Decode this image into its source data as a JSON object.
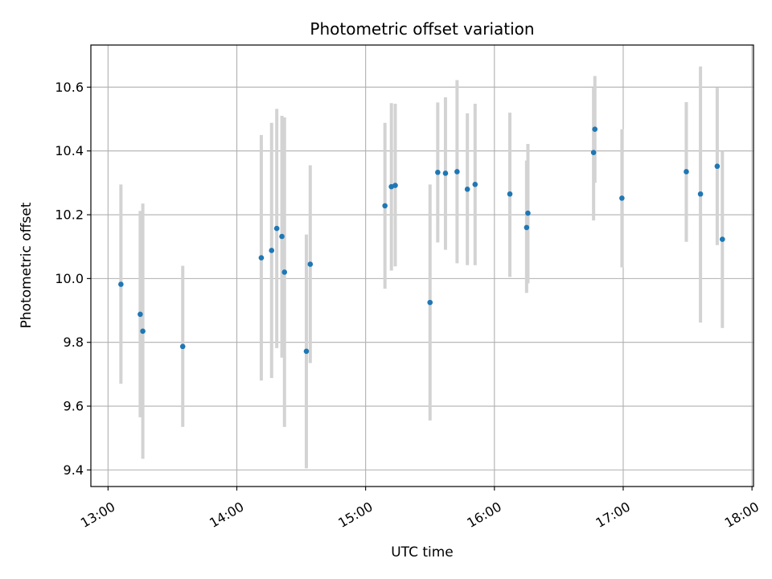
{
  "chart_data": {
    "type": "scatter",
    "title": "Photometric offset variation",
    "xlabel": "UTC time",
    "ylabel": "Photometric offset",
    "x_unit": "hours UTC",
    "xlim": [
      12.8667,
      18.0117
    ],
    "ylim": [
      9.348,
      10.732
    ],
    "x_ticks": [
      {
        "value": 13,
        "label": "13:00"
      },
      {
        "value": 14,
        "label": "14:00"
      },
      {
        "value": 15,
        "label": "15:00"
      },
      {
        "value": 16,
        "label": "16:00"
      },
      {
        "value": 17,
        "label": "17:00"
      },
      {
        "value": 18,
        "label": "18:00"
      }
    ],
    "y_ticks": [
      {
        "value": 9.4,
        "label": "9.4"
      },
      {
        "value": 9.6,
        "label": "9.6"
      },
      {
        "value": 9.8,
        "label": "9.8"
      },
      {
        "value": 10.0,
        "label": "10.0"
      },
      {
        "value": 10.2,
        "label": "10.2"
      },
      {
        "value": 10.4,
        "label": "10.4"
      },
      {
        "value": 10.6,
        "label": "10.6"
      }
    ],
    "grid": true,
    "colors": {
      "points": "#1f77b4",
      "errorbars": "#d3d3d3",
      "grid": "#b0b0b0"
    },
    "points": [
      {
        "x": 13.1,
        "y": 9.982,
        "ylow": 9.67,
        "yhigh": 10.295
      },
      {
        "x": 13.25,
        "y": 9.888,
        "ylow": 9.565,
        "yhigh": 10.212
      },
      {
        "x": 13.27,
        "y": 9.835,
        "ylow": 9.435,
        "yhigh": 10.235
      },
      {
        "x": 13.58,
        "y": 9.787,
        "ylow": 9.535,
        "yhigh": 10.04
      },
      {
        "x": 14.19,
        "y": 10.065,
        "ylow": 9.68,
        "yhigh": 10.45
      },
      {
        "x": 14.27,
        "y": 10.088,
        "ylow": 9.688,
        "yhigh": 10.488
      },
      {
        "x": 14.31,
        "y": 10.157,
        "ylow": 9.782,
        "yhigh": 10.532
      },
      {
        "x": 14.35,
        "y": 10.132,
        "ylow": 9.752,
        "yhigh": 10.51
      },
      {
        "x": 14.37,
        "y": 10.02,
        "ylow": 9.535,
        "yhigh": 10.505
      },
      {
        "x": 14.54,
        "y": 9.772,
        "ylow": 9.405,
        "yhigh": 10.138
      },
      {
        "x": 14.57,
        "y": 10.045,
        "ylow": 9.735,
        "yhigh": 10.355
      },
      {
        "x": 15.15,
        "y": 10.228,
        "ylow": 9.968,
        "yhigh": 10.488
      },
      {
        "x": 15.2,
        "y": 10.288,
        "ylow": 10.025,
        "yhigh": 10.55
      },
      {
        "x": 15.23,
        "y": 10.292,
        "ylow": 10.038,
        "yhigh": 10.548
      },
      {
        "x": 15.5,
        "y": 9.925,
        "ylow": 9.555,
        "yhigh": 10.295
      },
      {
        "x": 15.56,
        "y": 10.333,
        "ylow": 10.113,
        "yhigh": 10.552
      },
      {
        "x": 15.62,
        "y": 10.33,
        "ylow": 10.09,
        "yhigh": 10.568
      },
      {
        "x": 15.71,
        "y": 10.335,
        "ylow": 10.048,
        "yhigh": 10.622
      },
      {
        "x": 15.79,
        "y": 10.28,
        "ylow": 10.042,
        "yhigh": 10.518
      },
      {
        "x": 15.85,
        "y": 10.295,
        "ylow": 10.042,
        "yhigh": 10.548
      },
      {
        "x": 16.12,
        "y": 10.265,
        "ylow": 10.005,
        "yhigh": 10.52
      },
      {
        "x": 16.25,
        "y": 10.16,
        "ylow": 9.955,
        "yhigh": 10.37
      },
      {
        "x": 16.26,
        "y": 10.205,
        "ylow": 9.985,
        "yhigh": 10.422
      },
      {
        "x": 16.77,
        "y": 10.395,
        "ylow": 10.182,
        "yhigh": 10.598
      },
      {
        "x": 16.78,
        "y": 10.468,
        "ylow": 10.3,
        "yhigh": 10.635
      },
      {
        "x": 16.99,
        "y": 10.252,
        "ylow": 10.035,
        "yhigh": 10.468
      },
      {
        "x": 17.49,
        "y": 10.335,
        "ylow": 10.115,
        "yhigh": 10.553
      },
      {
        "x": 17.6,
        "y": 10.265,
        "ylow": 9.862,
        "yhigh": 10.665
      },
      {
        "x": 17.73,
        "y": 10.352,
        "ylow": 10.105,
        "yhigh": 10.598
      },
      {
        "x": 17.77,
        "y": 10.123,
        "ylow": 9.845,
        "yhigh": 10.4
      }
    ]
  }
}
